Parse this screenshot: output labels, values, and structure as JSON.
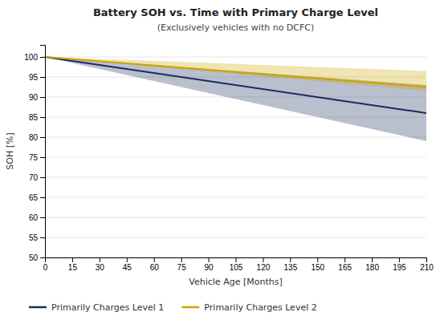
{
  "chart_data": {
    "type": "line",
    "title": "Battery SOH vs. Time with Primary Charge Level",
    "subtitle": "(Exclusively vehicles with no DCFC)",
    "xlabel": "Vehicle Age [Months]",
    "ylabel": "SOH [%]",
    "x": [
      0,
      210
    ],
    "series": [
      {
        "name": "Primarily Charges Level 1",
        "color": "#1b2a5e",
        "values": [
          100,
          86
        ],
        "upper": [
          100,
          93
        ],
        "lower": [
          100,
          79
        ]
      },
      {
        "name": "Primarily Charges Level 2",
        "color": "#c9a400",
        "values": [
          100,
          92.5
        ],
        "upper": [
          100,
          96.5
        ],
        "lower": [
          100,
          91.5
        ]
      }
    ],
    "xlim": [
      0,
      210
    ],
    "ylim": [
      50,
      103
    ],
    "xticks": [
      0,
      15,
      30,
      45,
      60,
      75,
      90,
      105,
      120,
      135,
      150,
      165,
      180,
      195,
      210
    ],
    "yticks": [
      50,
      55,
      60,
      65,
      70,
      75,
      80,
      85,
      90,
      95,
      100
    ],
    "grid": true,
    "legend": "bottom"
  }
}
